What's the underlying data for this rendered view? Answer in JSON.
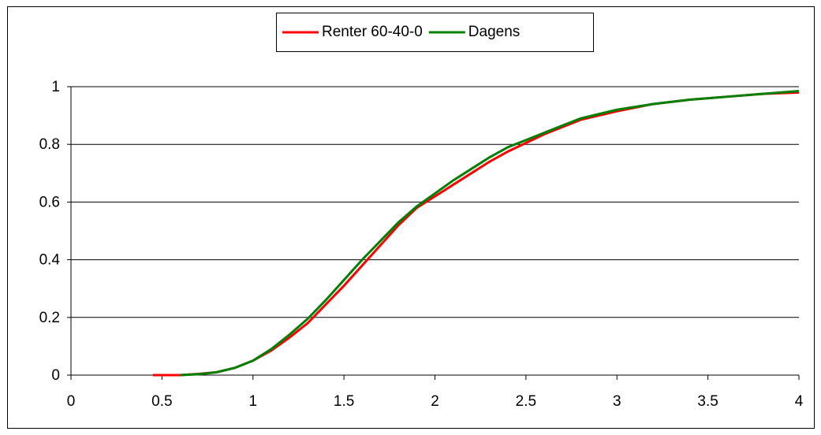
{
  "chart_data": {
    "type": "line",
    "x": [
      0.45,
      0.6,
      0.7,
      0.8,
      0.9,
      1.0,
      1.1,
      1.2,
      1.3,
      1.4,
      1.5,
      1.6,
      1.7,
      1.8,
      1.9,
      2.0,
      2.1,
      2.2,
      2.3,
      2.4,
      2.5,
      2.6,
      2.7,
      2.8,
      2.9,
      3.0,
      3.2,
      3.4,
      3.6,
      3.8,
      4.0
    ],
    "series": [
      {
        "name": "Renter 60-40-0",
        "color": "#ff0000",
        "values": [
          0,
          0,
          0.004,
          0.01,
          0.025,
          0.05,
          0.085,
          0.13,
          0.18,
          0.245,
          0.31,
          0.38,
          0.45,
          0.52,
          0.58,
          0.62,
          0.66,
          0.7,
          0.74,
          0.775,
          0.805,
          0.835,
          0.86,
          0.885,
          0.9,
          0.915,
          0.94,
          0.955,
          0.965,
          0.975,
          0.98
        ]
      },
      {
        "name": "Dagens",
        "color": "#008000",
        "values": [
          null,
          0,
          0.003,
          0.01,
          0.025,
          0.05,
          0.09,
          0.14,
          0.195,
          0.26,
          0.33,
          0.4,
          0.465,
          0.53,
          0.585,
          0.63,
          0.675,
          0.715,
          0.755,
          0.79,
          0.815,
          0.84,
          0.865,
          0.89,
          0.905,
          0.92,
          0.94,
          0.955,
          0.965,
          0.975,
          0.985
        ]
      }
    ],
    "xlim": [
      0,
      4
    ],
    "xticks": [
      0,
      0.5,
      1,
      1.5,
      2,
      2.5,
      3,
      3.5,
      4
    ],
    "ylim": [
      0,
      1
    ],
    "yticks": [
      0,
      0.2,
      0.4,
      0.6,
      0.8,
      1
    ],
    "grid": true,
    "legend": "top"
  }
}
